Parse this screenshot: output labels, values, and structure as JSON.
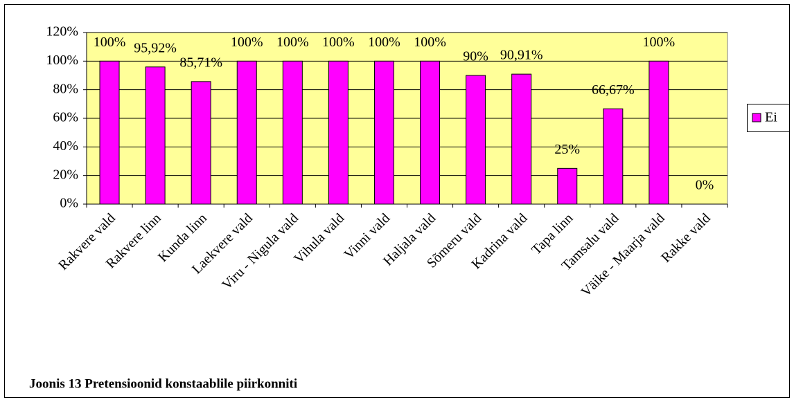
{
  "chart_data": {
    "type": "bar",
    "caption": "Joonis 13 Pretensioonid konstaablile piirkonniti",
    "categories": [
      "Rakvere vald",
      "Rakvere linn",
      "Kunda linn",
      "Laekvere vald",
      "Viru - Nigula vald",
      "Vihula vald",
      "Vinni vald",
      "Haljala vald",
      "Sõmeru vald",
      "Kadrina vald",
      "Tapa linn",
      "Tamsalu vald",
      "Väike - Maarja vald",
      "Rakke vald"
    ],
    "series": [
      {
        "name": "Ei",
        "color": "#ff00ff",
        "values": [
          100,
          95.92,
          85.71,
          100,
          100,
          100,
          100,
          100,
          90,
          90.91,
          25,
          66.67,
          100,
          0
        ],
        "value_labels": [
          "100%",
          "95,92%",
          "85,71%",
          "100%",
          "100%",
          "100%",
          "100%",
          "100%",
          "90%",
          "90,91%",
          "25%",
          "66,67%",
          "100%",
          "0%"
        ]
      }
    ],
    "ylim": [
      0,
      120
    ],
    "yticks": [
      {
        "value": 0,
        "label": "0%"
      },
      {
        "value": 20,
        "label": "20%"
      },
      {
        "value": 40,
        "label": "40%"
      },
      {
        "value": 60,
        "label": "60%"
      },
      {
        "value": 80,
        "label": "80%"
      },
      {
        "value": 100,
        "label": "100%"
      },
      {
        "value": 120,
        "label": "120%"
      }
    ],
    "grid": true,
    "plot_background": "#ffff99",
    "legend": "right"
  }
}
